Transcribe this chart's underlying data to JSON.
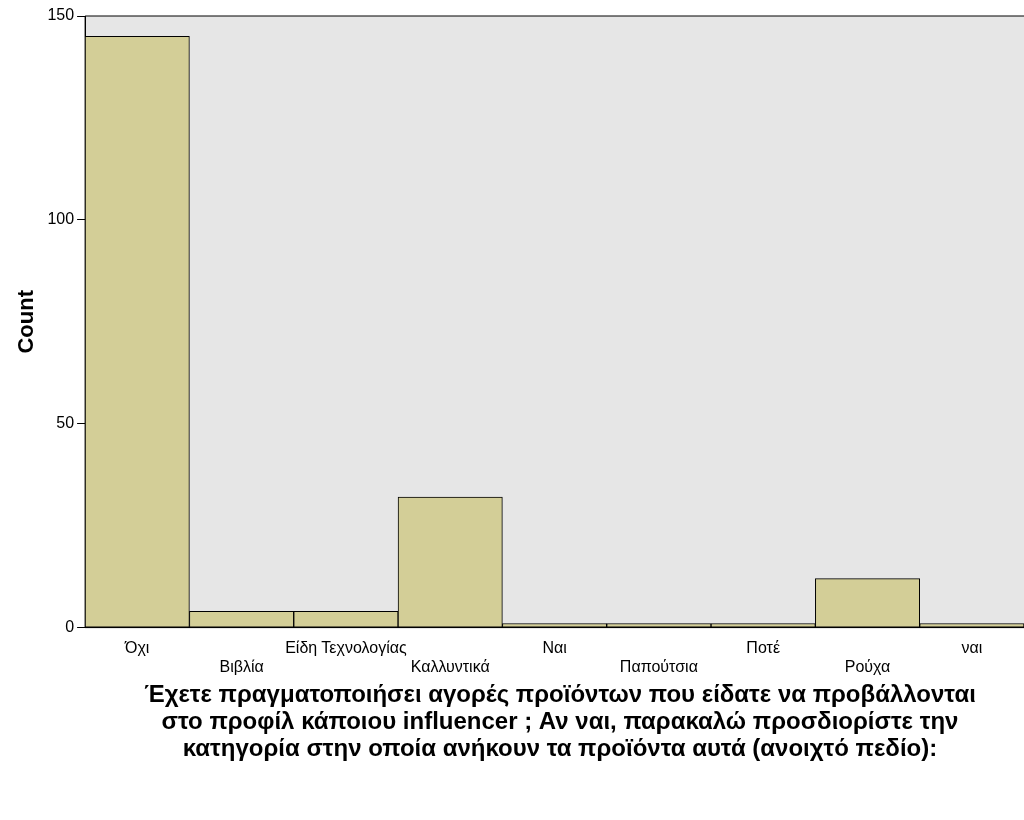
{
  "chart_data": {
    "type": "bar",
    "categories": [
      "Όχι",
      "Βιβλία",
      "Είδη Τεχνολογίας",
      "Καλλυντικά",
      "Ναι",
      "Παπούτσια",
      "Ποτέ",
      "Ρούχα",
      "ναι"
    ],
    "values": [
      145,
      4,
      4,
      32,
      1,
      1,
      1,
      12,
      1
    ],
    "color": "#d3ce97",
    "xlabel": "Έχετε πραγματοποιήσει αγορές προϊόντων που είδατε να προβάλλονται στο προφίλ κάποιου influencer ; Αν ναι, παρακαλώ προσδιορίστε την κατηγορία στην οποία ανήκουν τα προϊόντα αυτά (ανοιχτό πεδίο):",
    "ylabel": "Count",
    "ylim": [
      0,
      150
    ],
    "yticks": [
      0,
      50,
      100,
      150
    ],
    "grid": false,
    "legend": false
  }
}
